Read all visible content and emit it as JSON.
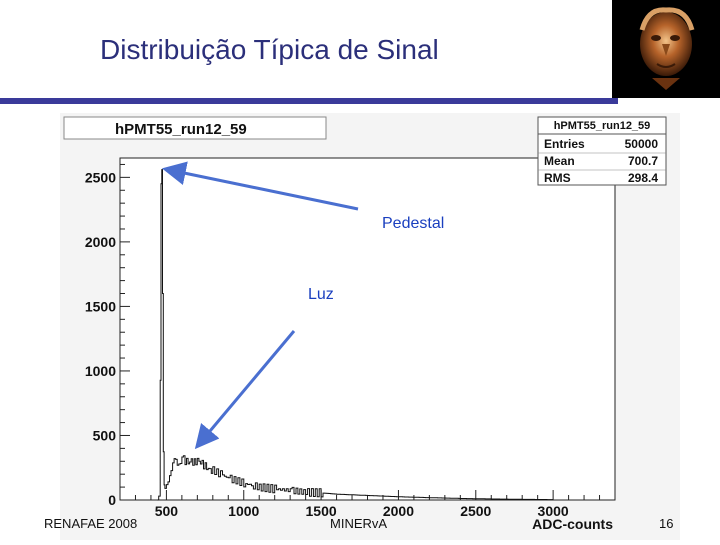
{
  "slide": {
    "title": "Distribuição Típica de Sinal",
    "footer_left": "RENAFAE 2008",
    "footer_center": "MINERvA",
    "page_number": "16"
  },
  "logo": {
    "icon": "bronze-head-sculpture-icon"
  },
  "colors": {
    "accent": "#3a3a9a",
    "title": "#2b2f7a",
    "annotation": "#1a3fbf",
    "arrow": "#4a6fd0"
  },
  "chart_data": {
    "type": "histogram",
    "title": "hPMT55_run12_59",
    "xlabel": "ADC-counts",
    "ylabel": "",
    "xlim": [
      200,
      3400
    ],
    "ylim": [
      0,
      2650
    ],
    "xticks": [
      500,
      1000,
      1500,
      2000,
      2500,
      3000
    ],
    "yticks": [
      0,
      500,
      1000,
      1500,
      2000,
      2500
    ],
    "stats_box": {
      "name": "hPMT55_run12_59",
      "rows": [
        {
          "label": "Entries",
          "value": "50000"
        },
        {
          "label": "Mean",
          "value": "700.7"
        },
        {
          "label": "RMS",
          "value": "298.4"
        }
      ]
    },
    "annotations": [
      {
        "text": "Pedestal",
        "points_to": [
          470,
          2560
        ]
      },
      {
        "text": "Luz",
        "points_to": [
          670,
          430
        ]
      }
    ],
    "series": [
      {
        "x": [
          440,
          450,
          460,
          465,
          470,
          475,
          480,
          485,
          490,
          500,
          510,
          520,
          530,
          540,
          550,
          560,
          570,
          580,
          590,
          600,
          620,
          640,
          660,
          680,
          700,
          720,
          740,
          760,
          780,
          800,
          850,
          900,
          950,
          1000,
          1050,
          1100,
          1200,
          1300,
          1400,
          1500,
          1600,
          1700,
          1800,
          1900,
          2000,
          2200,
          2400,
          2600,
          2800,
          3000
        ],
        "values": [
          0,
          30,
          900,
          2450,
          2560,
          1600,
          380,
          95,
          60,
          110,
          160,
          220,
          240,
          270,
          290,
          300,
          285,
          310,
          300,
          320,
          305,
          300,
          310,
          290,
          300,
          285,
          270,
          260,
          240,
          230,
          200,
          170,
          150,
          130,
          115,
          100,
          85,
          75,
          60,
          55,
          45,
          40,
          35,
          30,
          25,
          18,
          12,
          8,
          5,
          3
        ]
      }
    ]
  }
}
